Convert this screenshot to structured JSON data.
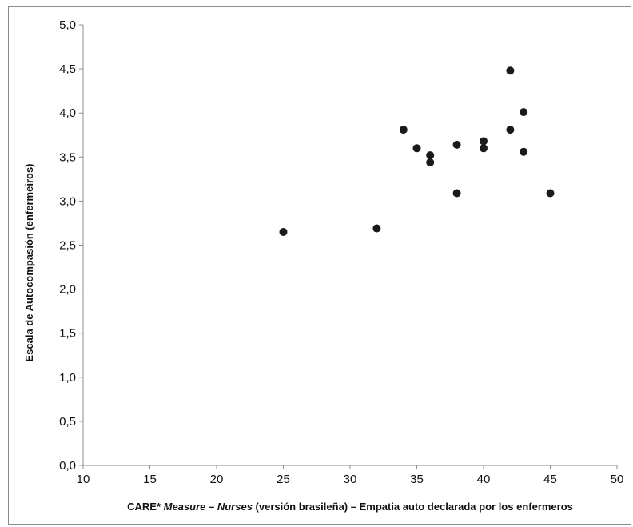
{
  "chart_data": {
    "type": "scatter",
    "title": "",
    "xlabel_parts": [
      {
        "text": "CARE* ",
        "italic": false
      },
      {
        "text": "Measure",
        "italic": true
      },
      {
        "text": " – ",
        "italic": false
      },
      {
        "text": "Nurses",
        "italic": true
      },
      {
        "text": " (versión brasileña) – Empatia auto declarada por los enfermeros",
        "italic": false
      }
    ],
    "ylabel": "Escala de Autocompasión (enfermeiros)",
    "xlim": [
      10,
      50
    ],
    "ylim": [
      0,
      5
    ],
    "x_ticks": [
      10,
      15,
      20,
      25,
      30,
      35,
      40,
      45,
      50
    ],
    "x_tick_labels": [
      "10",
      "15",
      "20",
      "25",
      "30",
      "35",
      "40",
      "45",
      "50"
    ],
    "y_ticks": [
      0,
      0.5,
      1,
      1.5,
      2,
      2.5,
      3,
      3.5,
      4,
      4.5,
      5
    ],
    "y_tick_labels": [
      "0,0",
      "0,5",
      "1,0",
      "1,5",
      "2,0",
      "2,5",
      "3,0",
      "3,5",
      "4,0",
      "4,5",
      "5,0"
    ],
    "grid": false,
    "marker_color": "#1a1a1a",
    "points": [
      {
        "x": 25,
        "y": 2.65
      },
      {
        "x": 32,
        "y": 2.69
      },
      {
        "x": 34,
        "y": 3.81
      },
      {
        "x": 35,
        "y": 3.6
      },
      {
        "x": 36,
        "y": 3.52
      },
      {
        "x": 36,
        "y": 3.44
      },
      {
        "x": 38,
        "y": 3.64
      },
      {
        "x": 38,
        "y": 3.09
      },
      {
        "x": 40,
        "y": 3.68
      },
      {
        "x": 40,
        "y": 3.6
      },
      {
        "x": 42,
        "y": 4.48
      },
      {
        "x": 42,
        "y": 3.81
      },
      {
        "x": 43,
        "y": 4.01
      },
      {
        "x": 43,
        "y": 3.56
      },
      {
        "x": 45,
        "y": 3.09
      }
    ]
  }
}
